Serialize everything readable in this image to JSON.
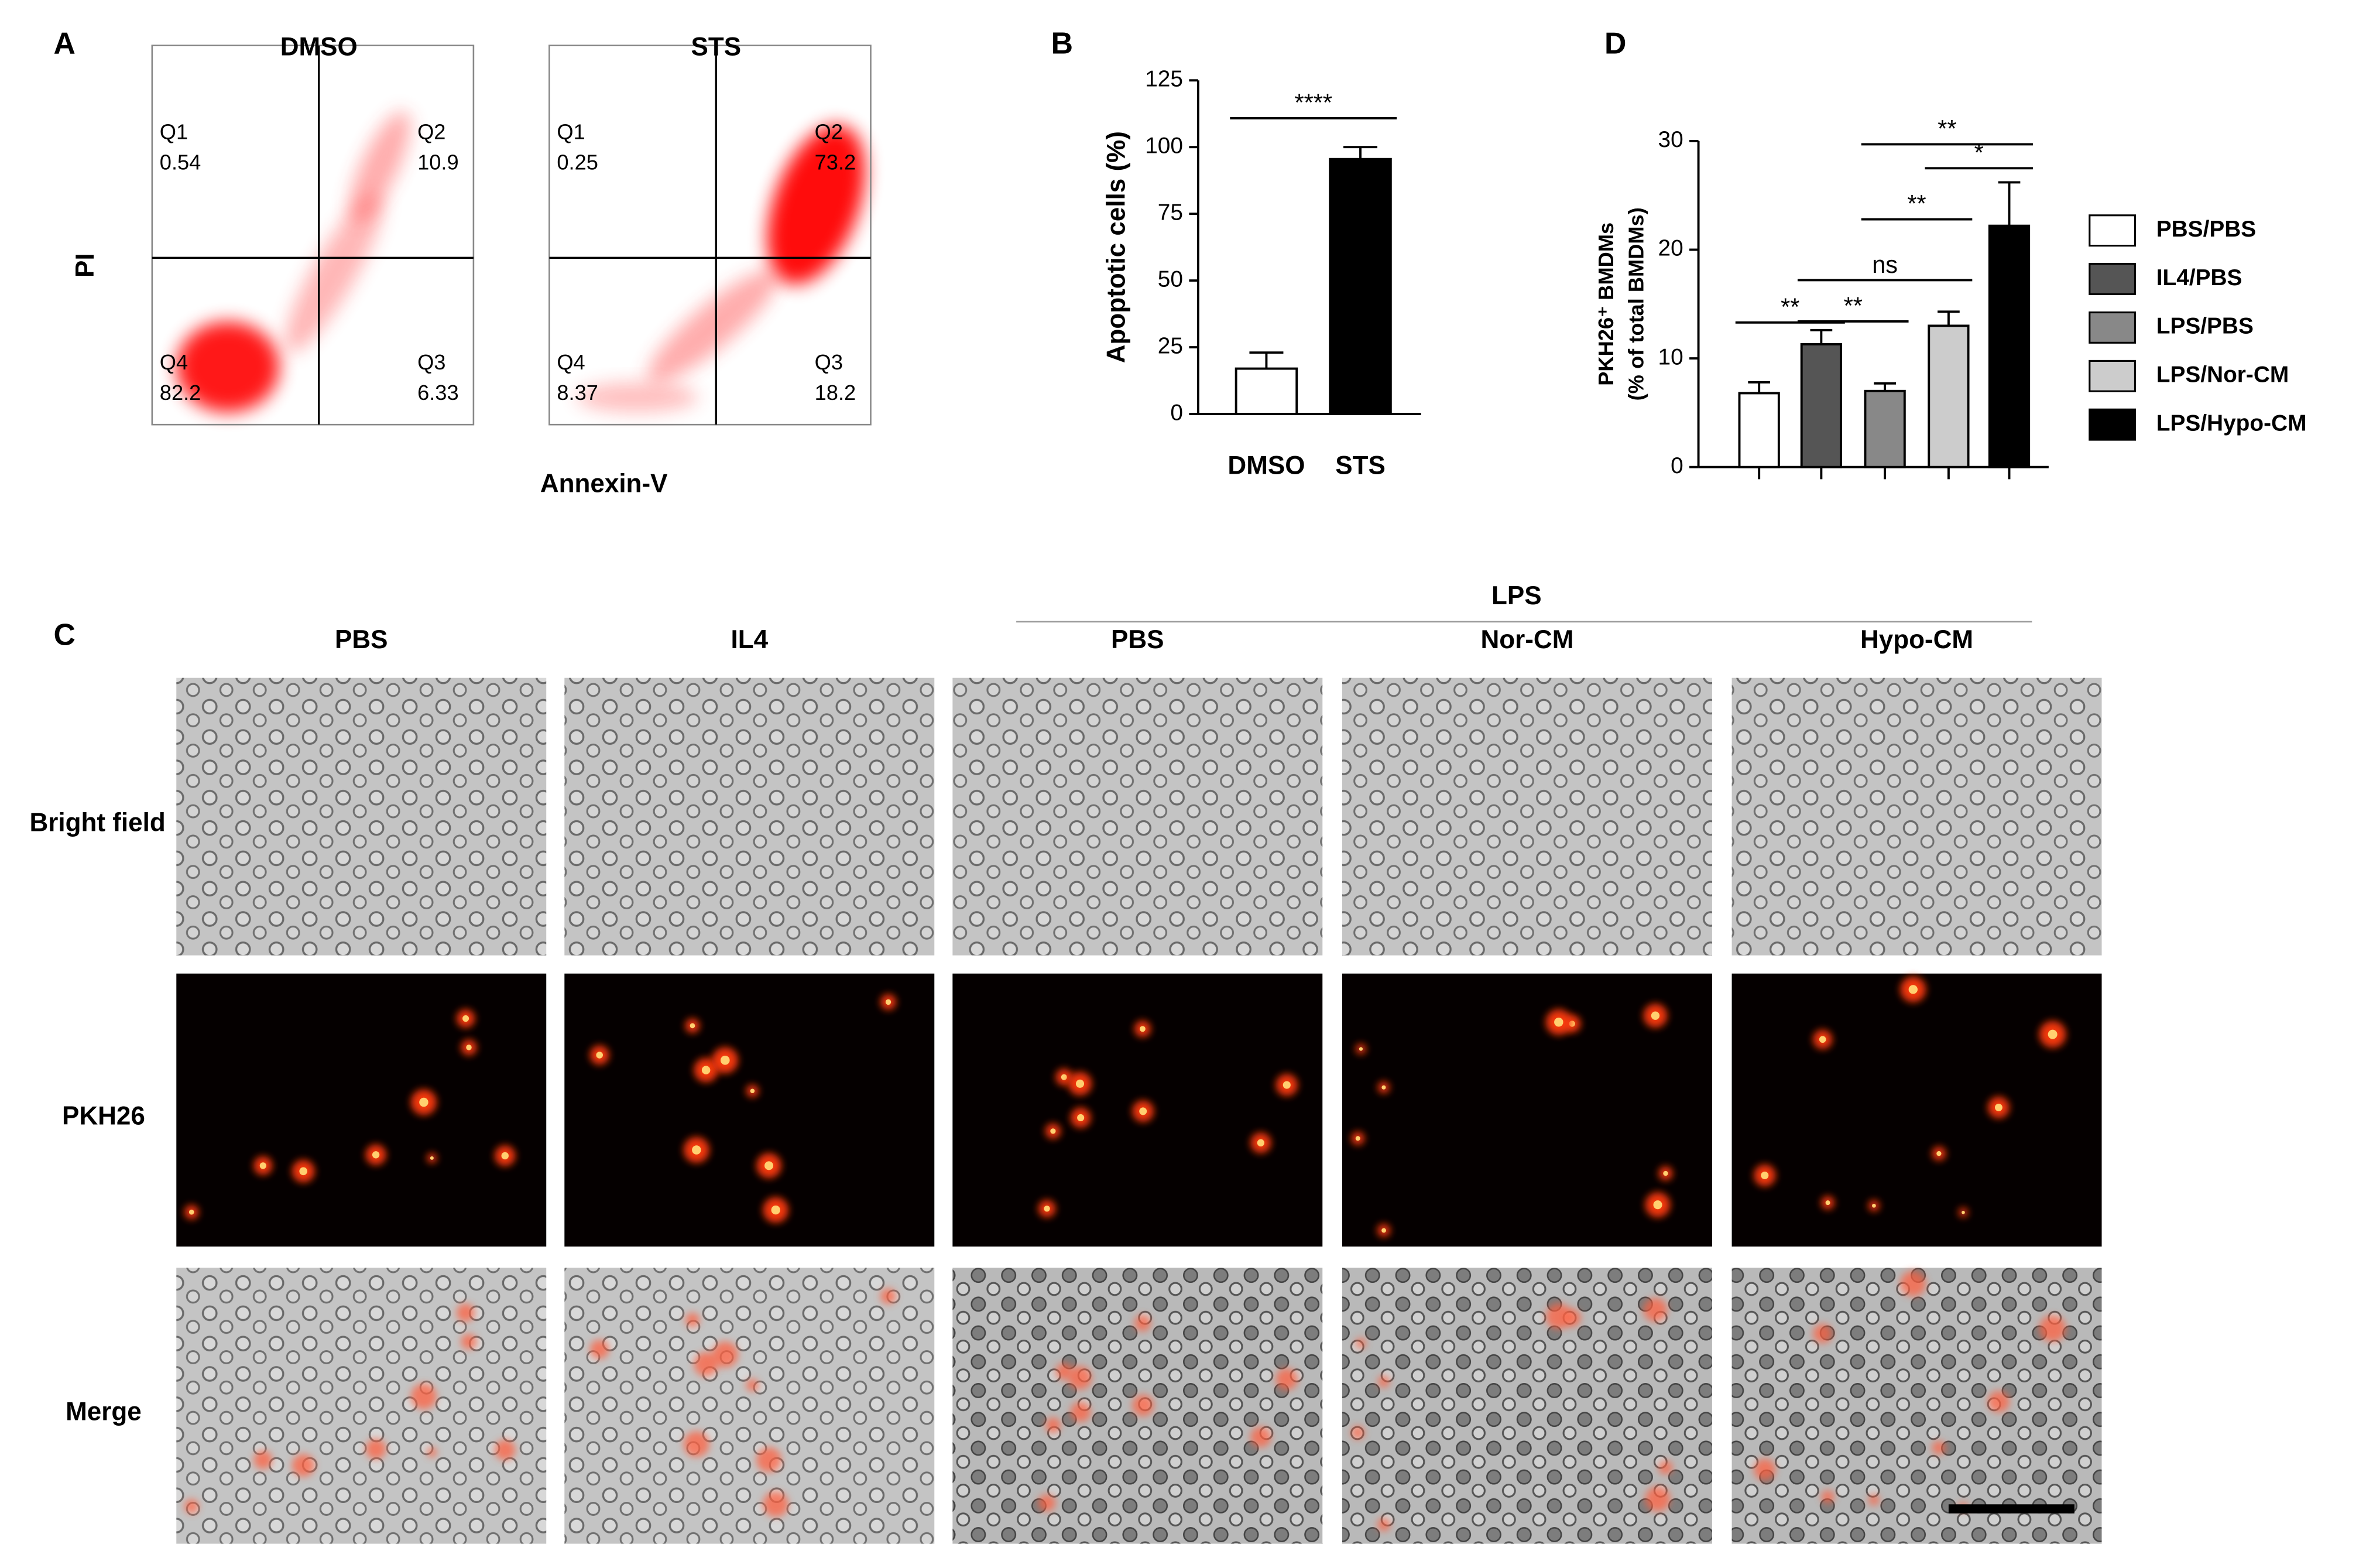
{
  "panel_labels": {
    "a": "A",
    "b": "B",
    "c": "C",
    "d": "D"
  },
  "flow": {
    "x_label": "Annexin-V",
    "y_label": "PI",
    "plots": [
      {
        "title": "DMSO",
        "quadrants": [
          {
            "name": "Q1",
            "value": 0.54
          },
          {
            "name": "Q2",
            "value": 10.9
          },
          {
            "name": "Q4",
            "value": 82.2
          },
          {
            "name": "Q3",
            "value": 6.33
          }
        ]
      },
      {
        "title": "STS",
        "quadrants": [
          {
            "name": "Q1",
            "value": 0.25
          },
          {
            "name": "Q2",
            "value": 73.2
          },
          {
            "name": "Q4",
            "value": 8.37
          },
          {
            "name": "Q3",
            "value": 18.2
          }
        ]
      }
    ]
  },
  "chart_data": [
    {
      "type": "bar",
      "y_label": [
        "Apoptotic cells (%)"
      ],
      "categories": [
        "DMSO",
        "STS"
      ],
      "values": [
        17,
        95.5
      ],
      "errors": [
        6,
        4.5
      ],
      "colors": [
        "#ffffff",
        "#000000"
      ],
      "ylim": [
        0,
        125
      ],
      "yticks": [
        0,
        25,
        50,
        75,
        100,
        125
      ],
      "significance": [
        {
          "from": 0,
          "to": 1,
          "y": 110.8,
          "label": "****"
        }
      ],
      "legend": false
    },
    {
      "type": "bar",
      "y_label": [
        "PKH26⁺ BMDMs",
        "(% of total BMDMs)"
      ],
      "categories": [
        "PBS/PBS",
        "IL4/PBS",
        "LPS/PBS",
        "LPS/Nor-CM",
        "LPS/Hypo-CM"
      ],
      "values": [
        6.8,
        11.3,
        7.0,
        13.0,
        22.2
      ],
      "errors": [
        1.0,
        1.3,
        0.7,
        1.3,
        4.0
      ],
      "colors": [
        "#ffffff",
        "#555555",
        "#888888",
        "#cccccc",
        "#000000"
      ],
      "ylim": [
        0,
        30
      ],
      "yticks": [
        0,
        10,
        20,
        30
      ],
      "significance": [
        {
          "from": 0,
          "to": 1,
          "y": 13.3,
          "label": "**"
        },
        {
          "from": 1,
          "to": 2,
          "y": 13.4,
          "label": "**"
        },
        {
          "from": 1,
          "to": 3,
          "y": 17.2,
          "label": "ns"
        },
        {
          "from": 2,
          "to": 3,
          "y": 22.8,
          "label": "**"
        },
        {
          "from": 3,
          "to": 4,
          "y": 27.5,
          "label": "*"
        },
        {
          "from": 2,
          "to": 4,
          "y": 29.7,
          "label": "**"
        }
      ],
      "legend": true
    }
  ],
  "micrographs": {
    "group_label": "LPS",
    "columns": [
      "PBS",
      "IL4",
      "PBS",
      "Nor-CM",
      "Hypo-CM"
    ],
    "rows": [
      "Bright field",
      "PKH26",
      "Merge"
    ]
  }
}
